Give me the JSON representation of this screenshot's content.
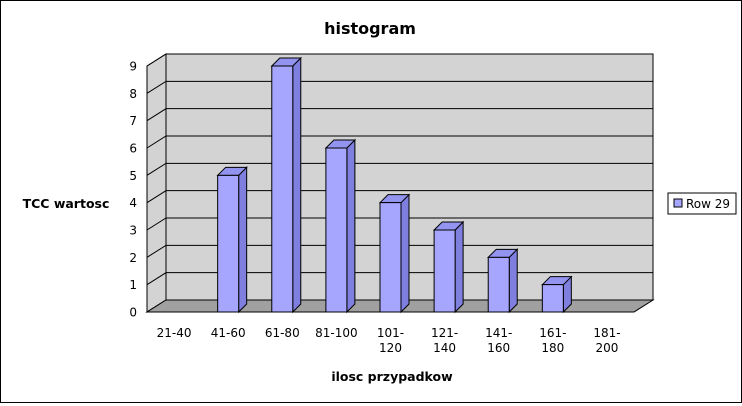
{
  "chart_data": {
    "type": "bar",
    "title": "histogram",
    "xlabel": "ilosc przypadkow",
    "ylabel": "TCC wartosc",
    "categories": [
      "21-40",
      "41-60",
      "61-80",
      "81-100",
      "101-\n120",
      "121-\n140",
      "141-\n160",
      "161-\n180",
      "181-\n200"
    ],
    "series": [
      {
        "name": "Row 29",
        "values": [
          0,
          5,
          9,
          6,
          4,
          3,
          2,
          1,
          0
        ]
      }
    ],
    "ylim": [
      0,
      9
    ],
    "yticks": [
      "0",
      "1",
      "2",
      "3",
      "4",
      "5",
      "6",
      "7",
      "8",
      "9"
    ],
    "grid": true,
    "legend": "right",
    "colors": {
      "bar_front": "#a6a6ff",
      "bar_side": "#7f7fe0",
      "bar_top": "#9393f0",
      "wall": "#d3d3d3",
      "floor": "#a0a0a0"
    }
  }
}
